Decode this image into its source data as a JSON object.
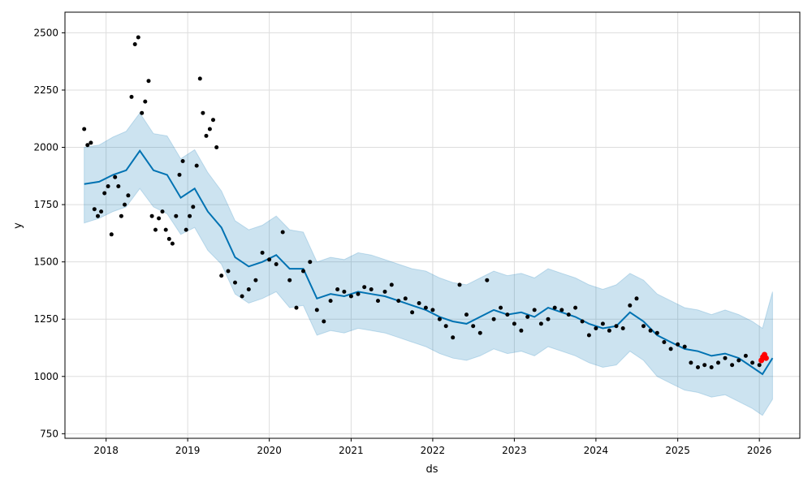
{
  "chart_data": {
    "type": "line",
    "title": "",
    "xlabel": "ds",
    "ylabel": "y",
    "x_range": [
      "2017-07-01",
      "2026-07-01"
    ],
    "ylim": [
      730,
      2590
    ],
    "grid": true,
    "x_ticks": [
      "2018",
      "2019",
      "2020",
      "2021",
      "2022",
      "2023",
      "2024",
      "2025",
      "2026"
    ],
    "y_ticks": [
      750,
      1000,
      1250,
      1500,
      1750,
      2000,
      2250,
      2500
    ],
    "colors": {
      "forecast_line": "#0072b2",
      "uncertainty_band": "#0072b2",
      "observed_points": "#000000",
      "highlight_points": "#ff0000",
      "grid": "#dddddd"
    },
    "series": [
      {
        "kind": "forecast_line",
        "x": [
          "2017-09-25",
          "2017-12-01",
          "2018-02-01",
          "2018-04-01",
          "2018-06-01",
          "2018-08-01",
          "2018-10-01",
          "2018-12-01",
          "2019-02-01",
          "2019-04-01",
          "2019-06-01",
          "2019-08-01",
          "2019-10-01",
          "2019-12-01",
          "2020-02-01",
          "2020-04-01",
          "2020-06-01",
          "2020-08-01",
          "2020-10-01",
          "2020-12-01",
          "2021-02-01",
          "2021-04-01",
          "2021-06-01",
          "2021-08-01",
          "2021-10-01",
          "2021-12-01",
          "2022-02-01",
          "2022-04-01",
          "2022-06-01",
          "2022-08-01",
          "2022-10-01",
          "2022-12-01",
          "2023-02-01",
          "2023-04-01",
          "2023-06-01",
          "2023-08-01",
          "2023-10-01",
          "2023-12-01",
          "2024-02-01",
          "2024-04-01",
          "2024-06-01",
          "2024-08-01",
          "2024-10-01",
          "2024-12-01",
          "2025-02-01",
          "2025-04-01",
          "2025-06-01",
          "2025-08-01",
          "2025-10-01",
          "2025-12-01",
          "2026-01-15",
          "2026-03-01"
        ],
        "y": [
          1840,
          1850,
          1880,
          1900,
          1985,
          1900,
          1880,
          1780,
          1820,
          1720,
          1650,
          1520,
          1480,
          1500,
          1530,
          1470,
          1470,
          1340,
          1360,
          1350,
          1370,
          1360,
          1350,
          1330,
          1310,
          1290,
          1260,
          1240,
          1230,
          1260,
          1290,
          1270,
          1280,
          1260,
          1300,
          1280,
          1260,
          1230,
          1210,
          1220,
          1280,
          1240,
          1180,
          1150,
          1120,
          1110,
          1090,
          1100,
          1080,
          1040,
          1010,
          1080
        ]
      },
      {
        "kind": "uncertainty_band",
        "x": [
          "2017-09-25",
          "2017-12-01",
          "2018-02-01",
          "2018-04-01",
          "2018-06-01",
          "2018-08-01",
          "2018-10-01",
          "2018-12-01",
          "2019-02-01",
          "2019-04-01",
          "2019-06-01",
          "2019-08-01",
          "2019-10-01",
          "2019-12-01",
          "2020-02-01",
          "2020-04-01",
          "2020-06-01",
          "2020-08-01",
          "2020-10-01",
          "2020-12-01",
          "2021-02-01",
          "2021-04-01",
          "2021-06-01",
          "2021-08-01",
          "2021-10-01",
          "2021-12-01",
          "2022-02-01",
          "2022-04-01",
          "2022-06-01",
          "2022-08-01",
          "2022-10-01",
          "2022-12-01",
          "2023-02-01",
          "2023-04-01",
          "2023-06-01",
          "2023-08-01",
          "2023-10-01",
          "2023-12-01",
          "2024-02-01",
          "2024-04-01",
          "2024-06-01",
          "2024-08-01",
          "2024-10-01",
          "2024-12-01",
          "2025-02-01",
          "2025-04-01",
          "2025-06-01",
          "2025-08-01",
          "2025-10-01",
          "2025-12-01",
          "2026-01-15",
          "2026-03-01"
        ],
        "upper": [
          2000,
          2010,
          2045,
          2070,
          2150,
          2060,
          2050,
          1950,
          1990,
          1890,
          1810,
          1680,
          1640,
          1660,
          1700,
          1640,
          1630,
          1500,
          1520,
          1510,
          1540,
          1530,
          1510,
          1490,
          1470,
          1460,
          1430,
          1410,
          1400,
          1430,
          1460,
          1440,
          1450,
          1430,
          1470,
          1450,
          1430,
          1400,
          1380,
          1400,
          1450,
          1420,
          1360,
          1330,
          1300,
          1290,
          1270,
          1290,
          1270,
          1240,
          1210,
          1370
        ],
        "lower": [
          1670,
          1690,
          1720,
          1740,
          1820,
          1740,
          1710,
          1620,
          1650,
          1550,
          1490,
          1360,
          1320,
          1340,
          1370,
          1300,
          1310,
          1180,
          1200,
          1190,
          1210,
          1200,
          1190,
          1170,
          1150,
          1130,
          1100,
          1080,
          1070,
          1090,
          1120,
          1100,
          1110,
          1090,
          1130,
          1110,
          1090,
          1060,
          1040,
          1050,
          1110,
          1070,
          1000,
          970,
          940,
          930,
          910,
          920,
          890,
          860,
          830,
          900
        ]
      },
      {
        "kind": "observed_points",
        "x": [
          "2017-09-25",
          "2017-10-10",
          "2017-10-25",
          "2017-11-10",
          "2017-11-25",
          "2017-12-10",
          "2017-12-25",
          "2018-01-10",
          "2018-01-25",
          "2018-02-10",
          "2018-02-25",
          "2018-03-10",
          "2018-03-25",
          "2018-04-10",
          "2018-04-25",
          "2018-05-10",
          "2018-05-25",
          "2018-06-10",
          "2018-06-25",
          "2018-07-10",
          "2018-07-25",
          "2018-08-10",
          "2018-08-25",
          "2018-09-10",
          "2018-09-25",
          "2018-10-10",
          "2018-10-25",
          "2018-11-10",
          "2018-11-25",
          "2018-12-10",
          "2018-12-25",
          "2019-01-10",
          "2019-01-25",
          "2019-02-10",
          "2019-02-25",
          "2019-03-10",
          "2019-03-25",
          "2019-04-10",
          "2019-04-25",
          "2019-05-10",
          "2019-06-01",
          "2019-07-01",
          "2019-08-01",
          "2019-09-01",
          "2019-10-01",
          "2019-11-01",
          "2019-12-01",
          "2020-01-01",
          "2020-02-01",
          "2020-03-01",
          "2020-04-01",
          "2020-05-01",
          "2020-06-01",
          "2020-07-01",
          "2020-08-01",
          "2020-09-01",
          "2020-10-01",
          "2020-11-01",
          "2020-12-01",
          "2021-01-01",
          "2021-02-01",
          "2021-03-01",
          "2021-04-01",
          "2021-05-01",
          "2021-06-01",
          "2021-07-01",
          "2021-08-01",
          "2021-09-01",
          "2021-10-01",
          "2021-11-01",
          "2021-12-01",
          "2022-01-01",
          "2022-02-01",
          "2022-03-01",
          "2022-04-01",
          "2022-05-01",
          "2022-06-01",
          "2022-07-01",
          "2022-08-01",
          "2022-09-01",
          "2022-10-01",
          "2022-11-01",
          "2022-12-01",
          "2023-01-01",
          "2023-02-01",
          "2023-03-01",
          "2023-04-01",
          "2023-05-01",
          "2023-06-01",
          "2023-07-01",
          "2023-08-01",
          "2023-09-01",
          "2023-10-01",
          "2023-11-01",
          "2023-12-01",
          "2024-01-01",
          "2024-02-01",
          "2024-03-01",
          "2024-04-01",
          "2024-05-01",
          "2024-06-01",
          "2024-07-01",
          "2024-08-01",
          "2024-09-01",
          "2024-10-01",
          "2024-11-01",
          "2024-12-01",
          "2025-01-01",
          "2025-02-01",
          "2025-03-01",
          "2025-04-01",
          "2025-05-01",
          "2025-06-01",
          "2025-07-01",
          "2025-08-01",
          "2025-09-01",
          "2025-10-01",
          "2025-11-01",
          "2025-12-01",
          "2026-01-01"
        ],
        "y": [
          2080,
          2010,
          2020,
          1730,
          1700,
          1720,
          1800,
          1830,
          1620,
          1870,
          1830,
          1700,
          1750,
          1790,
          2220,
          2450,
          2480,
          2150,
          2200,
          2290,
          1700,
          1640,
          1690,
          1720,
          1640,
          1600,
          1580,
          1700,
          1880,
          1940,
          1640,
          1700,
          1740,
          1920,
          2300,
          2150,
          2050,
          2080,
          2120,
          2000,
          1440,
          1460,
          1410,
          1350,
          1380,
          1420,
          1540,
          1510,
          1490,
          1630,
          1420,
          1300,
          1460,
          1500,
          1290,
          1240,
          1330,
          1380,
          1370,
          1350,
          1360,
          1390,
          1380,
          1330,
          1370,
          1400,
          1330,
          1340,
          1280,
          1320,
          1300,
          1290,
          1250,
          1220,
          1170,
          1400,
          1270,
          1220,
          1190,
          1420,
          1250,
          1300,
          1270,
          1230,
          1200,
          1260,
          1290,
          1230,
          1250,
          1300,
          1290,
          1270,
          1300,
          1240,
          1180,
          1210,
          1230,
          1200,
          1220,
          1210,
          1310,
          1340,
          1220,
          1200,
          1190,
          1150,
          1120,
          1140,
          1130,
          1060,
          1040,
          1050,
          1040,
          1060,
          1080,
          1050,
          1070,
          1090,
          1060,
          1050
        ]
      },
      {
        "kind": "highlight_points",
        "x": [
          "2026-01-10",
          "2026-01-17",
          "2026-01-24",
          "2026-01-31"
        ],
        "y": [
          1070,
          1085,
          1095,
          1080
        ]
      }
    ]
  }
}
